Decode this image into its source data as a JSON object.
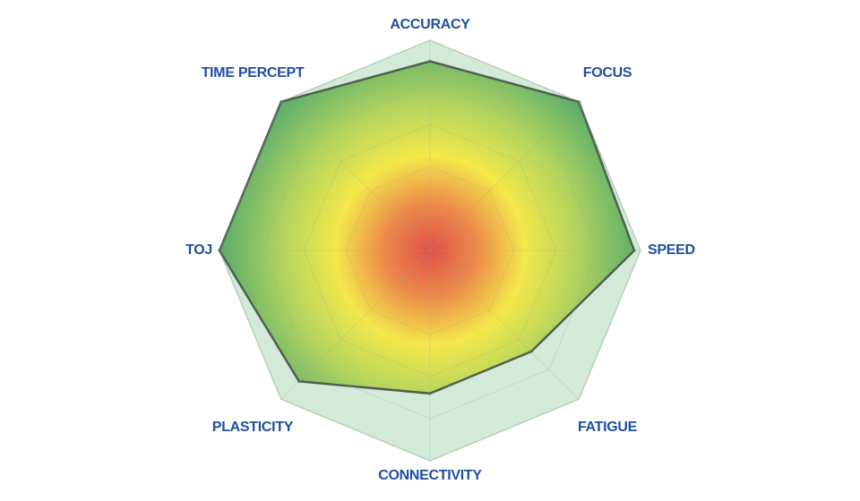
{
  "chart_data": {
    "type": "radar",
    "categories": [
      "ACCURACY",
      "FOCUS",
      "SPEED",
      "FATIGUE",
      "CONNECTIVITY",
      "PLASTICITY",
      "TOJ",
      "TIME PERCEPT"
    ],
    "values": [
      90,
      100,
      97,
      68,
      68,
      88,
      100,
      100
    ],
    "color": "#4f5f50",
    "rlim": [
      0,
      100
    ],
    "rticks": [
      20,
      40,
      60,
      80,
      100
    ],
    "grid": true
  }
}
